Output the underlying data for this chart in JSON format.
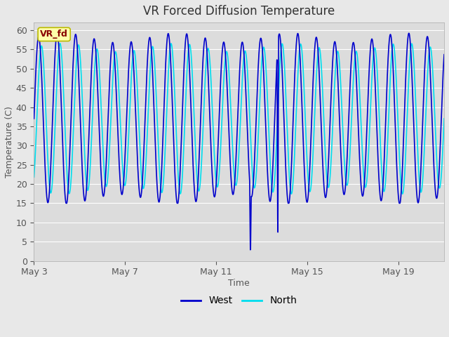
{
  "title": "VR Forced Diffusion Temperature",
  "xlabel": "Time",
  "ylabel": "Temperature (C)",
  "ylim": [
    0,
    62
  ],
  "yticks": [
    0,
    5,
    10,
    15,
    20,
    25,
    30,
    35,
    40,
    45,
    50,
    55,
    60
  ],
  "west_color": "#0000CC",
  "north_color": "#00DDEE",
  "west_linewidth": 1.2,
  "north_linewidth": 1.2,
  "bg_color": "#E8E8E8",
  "plot_bg_color": "#DCDCDC",
  "legend_labels": [
    "West",
    "North"
  ],
  "annotation_text": "VR_fd",
  "annotation_box_color": "#FFFFAA",
  "annotation_text_color": "#880000",
  "grid_color": "#FFFFFF",
  "title_fontsize": 12,
  "axis_label_fontsize": 9,
  "tick_fontsize": 9,
  "tick_color": "#555555",
  "start_day": 3,
  "end_day": 21,
  "period_hours": 19.5,
  "west_mean": 37.0,
  "west_amp": 21.0,
  "north_lag_hours": 3.0,
  "north_amp_factor": 0.88,
  "west_min": 15.0,
  "north_min": 16.0,
  "anomaly1_hour": 207,
  "anomaly2_hour": 225
}
